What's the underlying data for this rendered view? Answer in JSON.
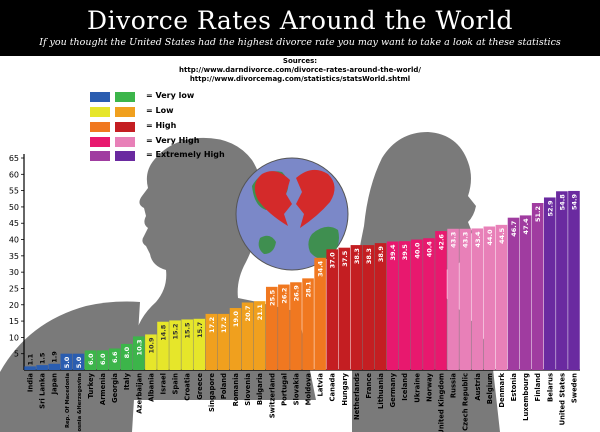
{
  "header": {
    "title": "Divorce Rates Around the World",
    "subtitle": "If you thought the United States had the highest divorce rate you may want to take a look at these statistics"
  },
  "sources": {
    "label": "Sources:",
    "urls": [
      "http://www.darndivorce.com/divorce-rates-around-the-world/",
      "http://www.divorcemag.com/statistics/statsWorld.shtml"
    ]
  },
  "legend": [
    {
      "label": "Very low",
      "color1": "#2a5db0",
      "color2": "#3cb54a"
    },
    {
      "label": "Low",
      "color1": "#e6e62a",
      "color2": "#f0a01e"
    },
    {
      "label": "High",
      "color1": "#f07820",
      "color2": "#c41e22"
    },
    {
      "label": "Very High",
      "color1": "#e8186e",
      "color2": "#e880b8"
    },
    {
      "label": "Extremely High",
      "color1": "#a03ca0",
      "color2": "#6a2aa0"
    }
  ],
  "chart_data": {
    "type": "bar",
    "title": "Divorce Rates Around the World",
    "ylim": [
      0,
      65
    ],
    "yticks": [
      5,
      10,
      15,
      20,
      25,
      30,
      35,
      40,
      45,
      50,
      55,
      60,
      65
    ],
    "grid": false,
    "categories": [
      "India",
      "Sri Lanka",
      "Japan",
      "Rep. Of Macedonia",
      "Bosnia &Herzegovina",
      "Turkey",
      "Armenia",
      "Georgia",
      "Italy",
      "Azerbaijan",
      "Albania",
      "Israel",
      "Spain",
      "Croatia",
      "Greece",
      "Singapore",
      "Poland",
      "Romania",
      "Slovenia",
      "Bulgaria",
      "Switzerland",
      "Portugal",
      "Slovakia",
      "Moldova",
      "Latvia",
      "Canada",
      "Hungary",
      "Netherlands",
      "France",
      "Lithuania",
      "Germany",
      "Iceland",
      "Ukraine",
      "Norway",
      "United Kingdom",
      "Russia",
      "Czech Republic",
      "Austria",
      "Belgium",
      "Denmark",
      "Estonia",
      "Luxembourg",
      "Finland",
      "Belarus",
      "United States",
      "Sweden"
    ],
    "values": [
      1.1,
      1.5,
      1.9,
      5.0,
      5.0,
      6.0,
      6.0,
      6.6,
      8.0,
      10.3,
      10.9,
      14.8,
      15.2,
      15.5,
      15.7,
      17.2,
      17.2,
      19.0,
      20.7,
      21.1,
      25.5,
      26.2,
      26.9,
      28.1,
      34.4,
      37.0,
      37.5,
      38.3,
      38.3,
      38.9,
      39.4,
      39.5,
      40.0,
      40.4,
      42.6,
      43.3,
      43.3,
      43.4,
      44.0,
      44.5,
      46.7,
      47.4,
      51.2,
      52.9,
      54.8,
      54.9
    ],
    "value_labels": [
      "1.1",
      "1.5",
      "1.9",
      "5.0",
      "5.0",
      "6.0",
      "6.0",
      "6.6",
      "8.0",
      "10.3",
      "10.9",
      "14.8",
      "15.2",
      "15.5",
      "15.7",
      "17.2",
      "17.2",
      "19.0",
      "20.7",
      "21.1",
      "25.5",
      "26.2",
      "26.9",
      "28.1",
      "34.4",
      "37.0",
      "37.5",
      "38.3",
      "38.3",
      "38.9",
      "39.4",
      "39.5",
      "40.0",
      "40.4",
      "42.6",
      "43.3",
      "43.3",
      "43.4",
      "44.0",
      "44.5",
      "46.7",
      "47.4",
      "51.2",
      "52.9",
      "54.8",
      "54.9"
    ],
    "colors": [
      "#2a5db0",
      "#2a5db0",
      "#2a5db0",
      "#2a5db0",
      "#2a5db0",
      "#3cb54a",
      "#3cb54a",
      "#3cb54a",
      "#3cb54a",
      "#3cb54a",
      "#e6e62a",
      "#e6e62a",
      "#e6e62a",
      "#e6e62a",
      "#e6e62a",
      "#f0a01e",
      "#f0a01e",
      "#f0a01e",
      "#f0a01e",
      "#f0a01e",
      "#f07820",
      "#f07820",
      "#f07820",
      "#f07820",
      "#f07820",
      "#c41e22",
      "#c41e22",
      "#c41e22",
      "#c41e22",
      "#c41e22",
      "#e8186e",
      "#e8186e",
      "#e8186e",
      "#e8186e",
      "#e8186e",
      "#e880b8",
      "#e880b8",
      "#e880b8",
      "#e880b8",
      "#e880b8",
      "#a03ca0",
      "#a03ca0",
      "#a03ca0",
      "#6a2aa0",
      "#6a2aa0",
      "#6a2aa0"
    ]
  }
}
